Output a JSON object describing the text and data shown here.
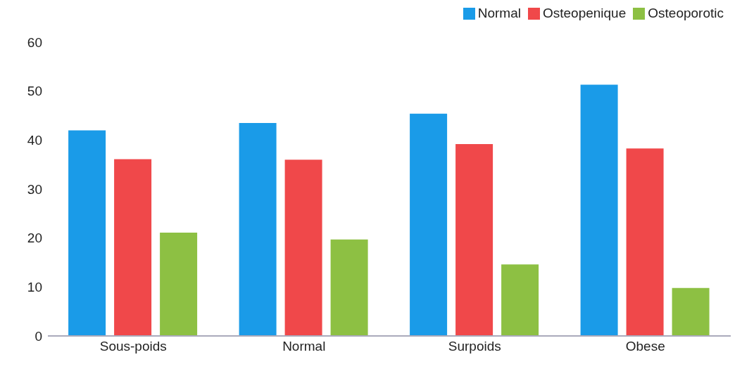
{
  "chart_data": {
    "type": "bar",
    "categories": [
      "Sous-poids",
      "Normal",
      "Surpoids",
      "Obese"
    ],
    "series": [
      {
        "name": "Normal",
        "color": "#1a9be8",
        "values": [
          42.0,
          43.5,
          45.4,
          51.3
        ]
      },
      {
        "name": "Osteopenique",
        "color": "#f0484a",
        "values": [
          36.1,
          36.0,
          39.2,
          38.3
        ]
      },
      {
        "name": "Osteoporotic",
        "color": "#8dc043",
        "values": [
          21.1,
          19.7,
          14.6,
          9.8
        ]
      }
    ],
    "ylim": [
      0,
      60
    ],
    "yticks": [
      0,
      10,
      20,
      30,
      40,
      50,
      60
    ],
    "grid": false,
    "legend": "top right"
  }
}
